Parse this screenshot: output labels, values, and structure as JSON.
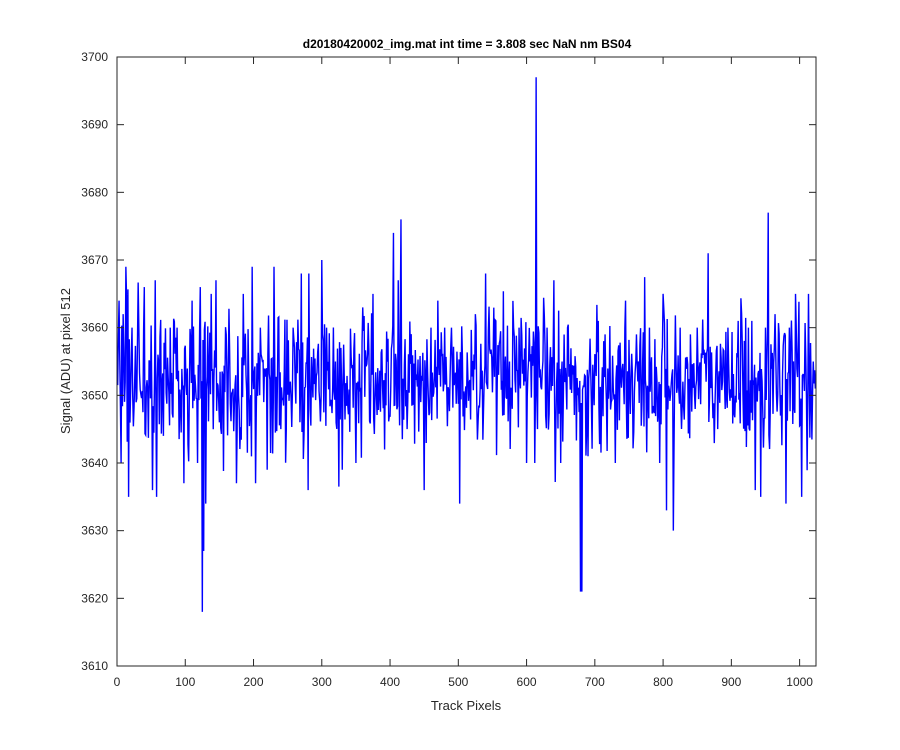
{
  "chart_data": {
    "type": "line",
    "title": "d20180420002_img.mat int time = 3.808 sec  NaN nm BS04",
    "xlabel": "Track Pixels",
    "ylabel": "Signal (ADU) at pixel 512",
    "xlim": [
      0,
      1024
    ],
    "ylim": [
      3610,
      3700
    ],
    "xticks": [
      0,
      100,
      200,
      300,
      400,
      500,
      600,
      700,
      800,
      900,
      1000
    ],
    "yticks": [
      3610,
      3620,
      3630,
      3640,
      3650,
      3660,
      3670,
      3680,
      3690,
      3700
    ],
    "grid": false,
    "colors": {
      "series": "#0000ff",
      "axes": "#262626",
      "background": "#ffffff"
    },
    "series": [
      {
        "n_points": 1024,
        "mean": 3652,
        "std": 5.8,
        "min": 3618,
        "max": 3697,
        "values_sampled": [
          [
            0,
            3655
          ],
          [
            3,
            3664
          ],
          [
            6,
            3640
          ],
          [
            9,
            3662
          ],
          [
            13,
            3669
          ],
          [
            17,
            3635
          ],
          [
            22,
            3660
          ],
          [
            30,
            3658
          ],
          [
            40,
            3666
          ],
          [
            52,
            3636
          ],
          [
            56,
            3667
          ],
          [
            58,
            3635
          ],
          [
            68,
            3644
          ],
          [
            78,
            3660
          ],
          [
            88,
            3660
          ],
          [
            98,
            3637
          ],
          [
            110,
            3664
          ],
          [
            118,
            3640
          ],
          [
            122,
            3666
          ],
          [
            125,
            3618
          ],
          [
            127,
            3627
          ],
          [
            130,
            3634
          ],
          [
            138,
            3665
          ],
          [
            145,
            3667
          ],
          [
            150,
            3646
          ],
          [
            160,
            3659
          ],
          [
            175,
            3637
          ],
          [
            185,
            3665
          ],
          [
            198,
            3669
          ],
          [
            203,
            3637
          ],
          [
            210,
            3660
          ],
          [
            220,
            3639
          ],
          [
            230,
            3669
          ],
          [
            240,
            3645
          ],
          [
            258,
            3660
          ],
          [
            270,
            3668
          ],
          [
            280,
            3636
          ],
          [
            300,
            3670
          ],
          [
            320,
            3655
          ],
          [
            330,
            3639
          ],
          [
            350,
            3640
          ],
          [
            360,
            3663
          ],
          [
            375,
            3665
          ],
          [
            392,
            3642
          ],
          [
            405,
            3674
          ],
          [
            412,
            3667
          ],
          [
            416,
            3676
          ],
          [
            425,
            3645
          ],
          [
            445,
            3649
          ],
          [
            450,
            3636
          ],
          [
            460,
            3660
          ],
          [
            470,
            3664
          ],
          [
            480,
            3660
          ],
          [
            490,
            3660
          ],
          [
            502,
            3634
          ],
          [
            510,
            3650
          ],
          [
            525,
            3662
          ],
          [
            540,
            3668
          ],
          [
            555,
            3661
          ],
          [
            565,
            3647
          ],
          [
            575,
            3655
          ],
          [
            589,
            3660
          ],
          [
            600,
            3640
          ],
          [
            605,
            3655
          ],
          [
            612,
            3640
          ],
          [
            614,
            3697
          ],
          [
            616,
            3645
          ],
          [
            630,
            3660
          ],
          [
            640,
            3667
          ],
          [
            650,
            3640
          ],
          [
            660,
            3660
          ],
          [
            675,
            3650
          ],
          [
            679,
            3621
          ],
          [
            681,
            3621
          ],
          [
            690,
            3641
          ],
          [
            705,
            3661
          ],
          [
            715,
            3659
          ],
          [
            730,
            3640
          ],
          [
            745,
            3664
          ],
          [
            760,
            3655
          ],
          [
            780,
            3660
          ],
          [
            795,
            3640
          ],
          [
            800,
            3665
          ],
          [
            805,
            3633
          ],
          [
            815,
            3630
          ],
          [
            825,
            3660
          ],
          [
            840,
            3659
          ],
          [
            850,
            3660
          ],
          [
            866,
            3671
          ],
          [
            880,
            3645
          ],
          [
            895,
            3660
          ],
          [
            910,
            3661
          ],
          [
            925,
            3660
          ],
          [
            935,
            3636
          ],
          [
            943,
            3635
          ],
          [
            950,
            3660
          ],
          [
            954,
            3677
          ],
          [
            957,
            3648
          ],
          [
            964,
            3662
          ],
          [
            972,
            3647
          ],
          [
            980,
            3634
          ],
          [
            985,
            3660
          ],
          [
            994,
            3665
          ],
          [
            1003,
            3635
          ],
          [
            1013,
            3665
          ],
          [
            1020,
            3655
          ],
          [
            1023,
            3651
          ]
        ]
      }
    ]
  }
}
